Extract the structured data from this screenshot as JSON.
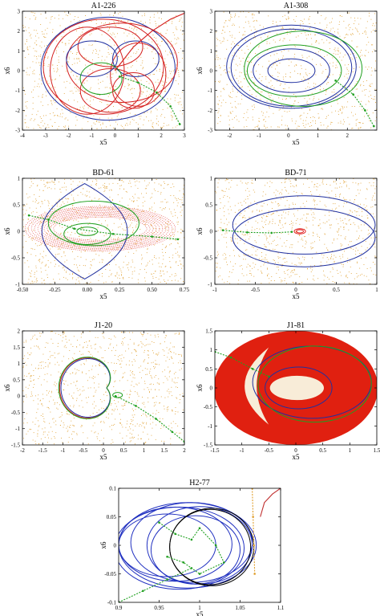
{
  "chart_data": [
    {
      "type": "scatter",
      "title": "A1-226",
      "xlabel": "x5",
      "ylabel": "x6",
      "xlim": [
        -4,
        3
      ],
      "ylim": [
        -3,
        3
      ],
      "xticks": [
        "-4",
        "-3",
        "-2",
        "-1",
        "0",
        "1",
        "2",
        "3"
      ],
      "yticks": [
        "-3",
        "-2",
        "-1",
        "0",
        "1",
        "2",
        "3"
      ],
      "grid": false,
      "colors": {
        "background_dots": "#e0a030",
        "orbit_a": "#d42020",
        "orbit_b": "#2030a0",
        "orbit_c": "#20a020"
      },
      "series": [
        {
          "kind": "dots",
          "color": "#e0a030",
          "points": []
        },
        {
          "kind": "ellipse",
          "color": "#2030a0",
          "cx": -0.3,
          "cy": 0.1,
          "rx": 2.9,
          "ry": 2.6
        },
        {
          "kind": "ellipse",
          "color": "#d42020",
          "cx": -0.5,
          "cy": 0.2,
          "rx": 2.6,
          "ry": 2.4
        },
        {
          "kind": "ellipse",
          "color": "#d42020",
          "cx": 0.3,
          "cy": 0.4,
          "rx": 2.4,
          "ry": 2.0
        },
        {
          "kind": "ellipse",
          "color": "#d42020",
          "cx": -1.2,
          "cy": 0.0,
          "rx": 1.6,
          "ry": 2.2
        },
        {
          "kind": "ellipse",
          "color": "#d42020",
          "cx": 1.0,
          "cy": -0.2,
          "rx": 1.2,
          "ry": 1.6
        },
        {
          "kind": "ellipse",
          "color": "#d42020",
          "cx": -0.2,
          "cy": 1.2,
          "rx": 1.4,
          "ry": 1.0
        },
        {
          "kind": "ellipse",
          "color": "#d42020",
          "cx": -0.2,
          "cy": -1.0,
          "rx": 1.3,
          "ry": 1.1
        },
        {
          "kind": "ellipse",
          "color": "#2030a0",
          "cx": 0.9,
          "cy": 0.6,
          "rx": 1.0,
          "ry": 0.9
        },
        {
          "kind": "ellipse",
          "color": "#2030a0",
          "cx": -1.0,
          "cy": 0.6,
          "rx": 1.1,
          "ry": 0.9
        },
        {
          "kind": "ellipse",
          "color": "#20a020",
          "cx": -0.6,
          "cy": -0.4,
          "rx": 0.9,
          "ry": 0.8
        },
        {
          "kind": "ellipse",
          "color": "#d42020",
          "cx": 0.8,
          "cy": -1.0,
          "rx": 0.9,
          "ry": 0.9
        },
        {
          "kind": "line",
          "color": "#20a020",
          "dashed": true,
          "x": [
            0.2,
            1.0,
            1.8,
            2.4,
            2.8
          ],
          "y": [
            -0.3,
            -0.6,
            -1.1,
            -1.8,
            -2.7
          ]
        },
        {
          "kind": "line",
          "color": "#d42020",
          "dashed": false,
          "x": [
            0.0,
            0.8,
            1.6,
            2.4,
            3.0
          ],
          "y": [
            0.0,
            1.2,
            2.0,
            2.6,
            2.9
          ]
        }
      ]
    },
    {
      "type": "scatter",
      "title": "A1-308",
      "xlabel": "x5",
      "ylabel": "x6",
      "xlim": [
        -2.5,
        3
      ],
      "ylim": [
        -3,
        3
      ],
      "xticks": [
        "-2",
        "-1",
        "0",
        "1",
        "2"
      ],
      "yticks": [
        "-3",
        "-2",
        "-1",
        "0",
        "1",
        "2",
        "3"
      ],
      "grid": false,
      "colors": {
        "background_dots": "#e0a030",
        "orbit_a": "#2030a0",
        "orbit_b": "#20a020"
      },
      "series": [
        {
          "kind": "dots",
          "color": "#e0a030",
          "points": []
        },
        {
          "kind": "ellipse",
          "color": "#2030a0",
          "cx": 0.1,
          "cy": 0.2,
          "rx": 2.2,
          "ry": 2.1
        },
        {
          "kind": "ellipse",
          "color": "#2030a0",
          "cx": 0.1,
          "cy": 0.15,
          "rx": 2.05,
          "ry": 1.95
        },
        {
          "kind": "ellipse",
          "color": "#20a020",
          "cx": 0.5,
          "cy": 0.1,
          "rx": 2.0,
          "ry": 1.9
        },
        {
          "kind": "ellipse",
          "color": "#2030a0",
          "cx": 0.1,
          "cy": 0.0,
          "rx": 1.3,
          "ry": 1.1
        },
        {
          "kind": "ellipse",
          "color": "#2030a0",
          "cx": 0.1,
          "cy": 0.0,
          "rx": 0.8,
          "ry": 0.6
        },
        {
          "kind": "ellipse",
          "color": "#20a020",
          "cx": 0.2,
          "cy": 0.0,
          "rx": 1.6,
          "ry": 1.3
        },
        {
          "kind": "line",
          "color": "#20a020",
          "dashed": true,
          "x": [
            1.6,
            2.2,
            2.6,
            2.9
          ],
          "y": [
            -0.5,
            -1.2,
            -2.0,
            -2.8
          ]
        }
      ]
    },
    {
      "type": "scatter",
      "title": "BD-61",
      "xlabel": "x5",
      "ylabel": "x6",
      "xlim": [
        -0.5,
        0.75
      ],
      "ylim": [
        -1,
        1
      ],
      "xticks": [
        "-0.50",
        "-0.25",
        "0.00",
        "0.25",
        "0.50",
        "0.75"
      ],
      "yticks": [
        "-1",
        "-0.5",
        "0",
        "0.5",
        "1"
      ],
      "grid": false,
      "colors": {
        "background_dots": "#e0a030",
        "band": "#e03030",
        "orbit_a": "#2030a0",
        "orbit_b": "#20a020"
      },
      "series": [
        {
          "kind": "dots",
          "color": "#e0a030",
          "points": []
        },
        {
          "kind": "band",
          "color": "#e03030",
          "cx": 0.1,
          "cy": 0.05,
          "rx": 0.58,
          "ry": 0.42,
          "inner_rx": 0.36,
          "inner_ry": 0.22
        },
        {
          "kind": "lens",
          "color": "#2030a0",
          "x0": -0.02,
          "ytop": 0.9,
          "ybot": -0.9,
          "half_width": 0.33
        },
        {
          "kind": "ellipse",
          "color": "#20a020",
          "cx": 0.05,
          "cy": 0.15,
          "rx": 0.35,
          "ry": 0.42
        },
        {
          "kind": "ellipse",
          "color": "#20a020",
          "cx": 0.0,
          "cy": -0.05,
          "rx": 0.18,
          "ry": 0.2
        },
        {
          "kind": "ellipse",
          "color": "#20a020",
          "cx": 0.0,
          "cy": 0.0,
          "rx": 0.08,
          "ry": 0.08
        },
        {
          "kind": "line",
          "color": "#20a020",
          "dashed": true,
          "x": [
            -0.45,
            -0.3,
            -0.1,
            0.2,
            0.5,
            0.7
          ],
          "y": [
            0.3,
            0.22,
            0.05,
            -0.05,
            -0.1,
            -0.15
          ]
        }
      ]
    },
    {
      "type": "scatter",
      "title": "BD-71",
      "xlabel": "x5",
      "ylabel": "x6",
      "xlim": [
        -1,
        1
      ],
      "ylim": [
        -1,
        1
      ],
      "xticks": [
        "-1",
        "-0.5",
        "0",
        "0.5",
        "1"
      ],
      "yticks": [
        "-1",
        "-0.5",
        "0",
        "0.5",
        "1"
      ],
      "grid": false,
      "colors": {
        "background_dots": "#e0a030",
        "orbit_a": "#2030a0",
        "orbit_b": "#20a020",
        "core": "#e02020"
      },
      "series": [
        {
          "kind": "dots",
          "color": "#e0a030",
          "points": []
        },
        {
          "kind": "ellipse",
          "color": "#2030a0",
          "cx": 0.1,
          "cy": 0.12,
          "rx": 0.88,
          "ry": 0.55
        },
        {
          "kind": "ellipse",
          "color": "#2030a0",
          "cx": 0.1,
          "cy": -0.12,
          "rx": 0.88,
          "ry": 0.55
        },
        {
          "kind": "ellipse",
          "color": "#e02020",
          "cx": 0.05,
          "cy": 0.0,
          "rx": 0.07,
          "ry": 0.05
        },
        {
          "kind": "ellipse",
          "color": "#e02020",
          "cx": 0.05,
          "cy": 0.0,
          "rx": 0.045,
          "ry": 0.03
        },
        {
          "kind": "line",
          "color": "#20a020",
          "dashed": true,
          "x": [
            -0.9,
            -0.6,
            -0.3,
            -0.05
          ],
          "y": [
            0.02,
            -0.02,
            -0.03,
            -0.01
          ]
        }
      ]
    },
    {
      "type": "scatter",
      "title": "J1-20",
      "xlabel": "x5",
      "ylabel": "x6",
      "xlim": [
        -2,
        2
      ],
      "ylim": [
        -1.5,
        2
      ],
      "xticks": [
        "-2",
        "-1.5",
        "-1",
        "-0.5",
        "0",
        "0.5",
        "1",
        "1.5",
        "2"
      ],
      "yticks": [
        "-1.5",
        "-1",
        "-0.5",
        "0",
        "0.5",
        "1",
        "1.5",
        "2"
      ],
      "grid": false,
      "colors": {
        "background_dots": "#e0a030",
        "orbit_a": "#d42020",
        "orbit_b": "#2030a0",
        "orbit_c": "#20a020"
      },
      "series": [
        {
          "kind": "dots",
          "color": "#e0a030",
          "points": []
        },
        {
          "kind": "cardioid",
          "color": "#d42020",
          "cx": 0.0,
          "cy": 0.25,
          "scale": 1.0
        },
        {
          "kind": "cardioid",
          "color": "#2030a0",
          "cx": 0.0,
          "cy": 0.25,
          "scale": 0.97
        },
        {
          "kind": "cardioid",
          "color": "#20a020",
          "cx": 0.0,
          "cy": 0.25,
          "scale": 1.02
        },
        {
          "kind": "ellipse",
          "color": "#20a020",
          "cx": 0.35,
          "cy": 0.03,
          "rx": 0.12,
          "ry": 0.08
        },
        {
          "kind": "line",
          "color": "#20a020",
          "dashed": true,
          "x": [
            0.3,
            0.8,
            1.3,
            1.7,
            2.0
          ],
          "y": [
            0.0,
            -0.3,
            -0.7,
            -1.1,
            -1.4
          ]
        }
      ]
    },
    {
      "type": "scatter",
      "title": "J1-81",
      "xlabel": "x5",
      "ylabel": "x6",
      "xlim": [
        -1.5,
        1.5
      ],
      "ylim": [
        -1.5,
        1.5
      ],
      "xticks": [
        "-1.5",
        "-1",
        "-0.5",
        "0",
        "0.5",
        "1",
        "1.5"
      ],
      "yticks": [
        "-1.5",
        "-1",
        "-0.5",
        "0",
        "0.5",
        "1",
        "1.5"
      ],
      "grid": false,
      "colors": {
        "background_dots": "#e0a030",
        "sea": "#e02010",
        "island": "#f8ecd8",
        "orbit_a": "#2030a0",
        "orbit_b": "#20a020"
      },
      "series": [
        {
          "kind": "disk",
          "color": "#e02010",
          "cx": 0.0,
          "cy": 0.0,
          "rx": 1.52,
          "ry": 1.5
        },
        {
          "kind": "crescent",
          "color": "#f8ecd8",
          "cx": -0.8,
          "cy": 0.05
        },
        {
          "kind": "ellipse_fill",
          "color": "#f8ecd8",
          "cx": 0.02,
          "cy": 0.0,
          "rx": 0.5,
          "ry": 0.32
        },
        {
          "kind": "ellipse",
          "color": "#2030a0",
          "cx": 0.05,
          "cy": 0.0,
          "rx": 0.62,
          "ry": 0.55
        },
        {
          "kind": "ellipse",
          "color": "#2030a0",
          "cx": 0.3,
          "cy": 0.15,
          "rx": 1.1,
          "ry": 0.95
        },
        {
          "kind": "ellipse",
          "color": "#20a020",
          "cx": 0.35,
          "cy": 0.1,
          "rx": 1.05,
          "ry": 1.0
        },
        {
          "kind": "line",
          "color": "#20a020",
          "dashed": true,
          "x": [
            -1.5,
            -1.2,
            -0.8,
            -0.5
          ],
          "y": [
            0.95,
            0.8,
            0.5,
            0.3
          ]
        }
      ]
    },
    {
      "type": "scatter",
      "title": "H2-77",
      "xlabel": "x5",
      "ylabel": "x6",
      "xlim": [
        0.9,
        1.1
      ],
      "ylim": [
        -0.1,
        0.1
      ],
      "xticks": [
        "0.9",
        "0.95",
        "1",
        "1.05",
        "1.1"
      ],
      "yticks": [
        "-0.1",
        "-0.05",
        "0",
        "0.05",
        "0.1"
      ],
      "grid": false,
      "colors": {
        "orbit_a": "#2030c0",
        "orbit_b": "#000000",
        "orbit_c": "#20a020",
        "branch": "#c03030",
        "branch_dash": "#e0a030"
      },
      "series": [
        {
          "kind": "ellipse",
          "color": "#2030c0",
          "cx": 0.985,
          "cy": 0.0,
          "rx": 0.085,
          "ry": 0.075
        },
        {
          "kind": "ellipse",
          "color": "#2030c0",
          "cx": 0.99,
          "cy": 0.005,
          "rx": 0.075,
          "ry": 0.07
        },
        {
          "kind": "ellipse",
          "color": "#2030c0",
          "cx": 0.975,
          "cy": -0.005,
          "rx": 0.08,
          "ry": 0.072
        },
        {
          "kind": "ellipse",
          "color": "#2030c0",
          "cx": 1.0,
          "cy": 0.0,
          "rx": 0.065,
          "ry": 0.068
        },
        {
          "kind": "ellipse",
          "color": "#2030c0",
          "cx": 0.97,
          "cy": 0.002,
          "rx": 0.07,
          "ry": 0.065
        },
        {
          "kind": "ellipse",
          "color": "#2030c0",
          "cx": 0.995,
          "cy": -0.008,
          "rx": 0.055,
          "ry": 0.06
        },
        {
          "kind": "ellipse",
          "color": "#2030c0",
          "cx": 0.96,
          "cy": 0.0,
          "rx": 0.06,
          "ry": 0.055
        },
        {
          "kind": "ellipse",
          "color": "#000000",
          "cx": 1.015,
          "cy": -0.003,
          "rx": 0.052,
          "ry": 0.068
        },
        {
          "kind": "ellipse",
          "color": "#000000",
          "cx": 1.013,
          "cy": -0.003,
          "rx": 0.05,
          "ry": 0.066
        },
        {
          "kind": "line",
          "color": "#20a020",
          "dashed": true,
          "x": [
            0.95,
            0.97,
            0.99,
            1.0,
            1.02,
            1.03,
            1.0,
            0.98,
            0.96
          ],
          "y": [
            0.04,
            0.02,
            0.01,
            0.03,
            0.0,
            -0.03,
            -0.05,
            -0.03,
            -0.02
          ]
        },
        {
          "kind": "line",
          "color": "#20a020",
          "dashed": true,
          "x": [
            0.9,
            0.93,
            0.96,
            0.99
          ],
          "y": [
            -0.1,
            -0.08,
            -0.06,
            -0.04
          ]
        },
        {
          "kind": "line",
          "color": "#c03030",
          "dashed": false,
          "x": [
            1.075,
            1.08,
            1.09,
            1.1
          ],
          "y": [
            0.05,
            0.075,
            0.09,
            0.1
          ]
        },
        {
          "kind": "line",
          "color": "#e0a030",
          "dashed": true,
          "x": [
            1.065,
            1.066,
            1.067,
            1.068
          ],
          "y": [
            0.1,
            0.05,
            0.0,
            -0.05
          ]
        }
      ]
    }
  ]
}
